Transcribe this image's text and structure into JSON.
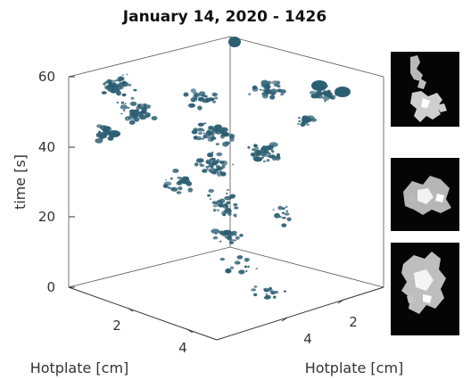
{
  "chart_data": {
    "type": "scatter",
    "title": "January 14, 2020 - 1426",
    "projection": "3d",
    "zlabel": "time [s]",
    "xlabel": "Hotplate [cm]",
    "ylabel": "Hotplate [cm]",
    "zlim": [
      0,
      60
    ],
    "z_ticks": [
      "0",
      "20",
      "40",
      "60"
    ],
    "x_ticks": [
      "2",
      "4"
    ],
    "y_ticks": [
      "2",
      "4"
    ],
    "grid": false,
    "marker_color": "#2d5f73",
    "inset_count": 3
  }
}
